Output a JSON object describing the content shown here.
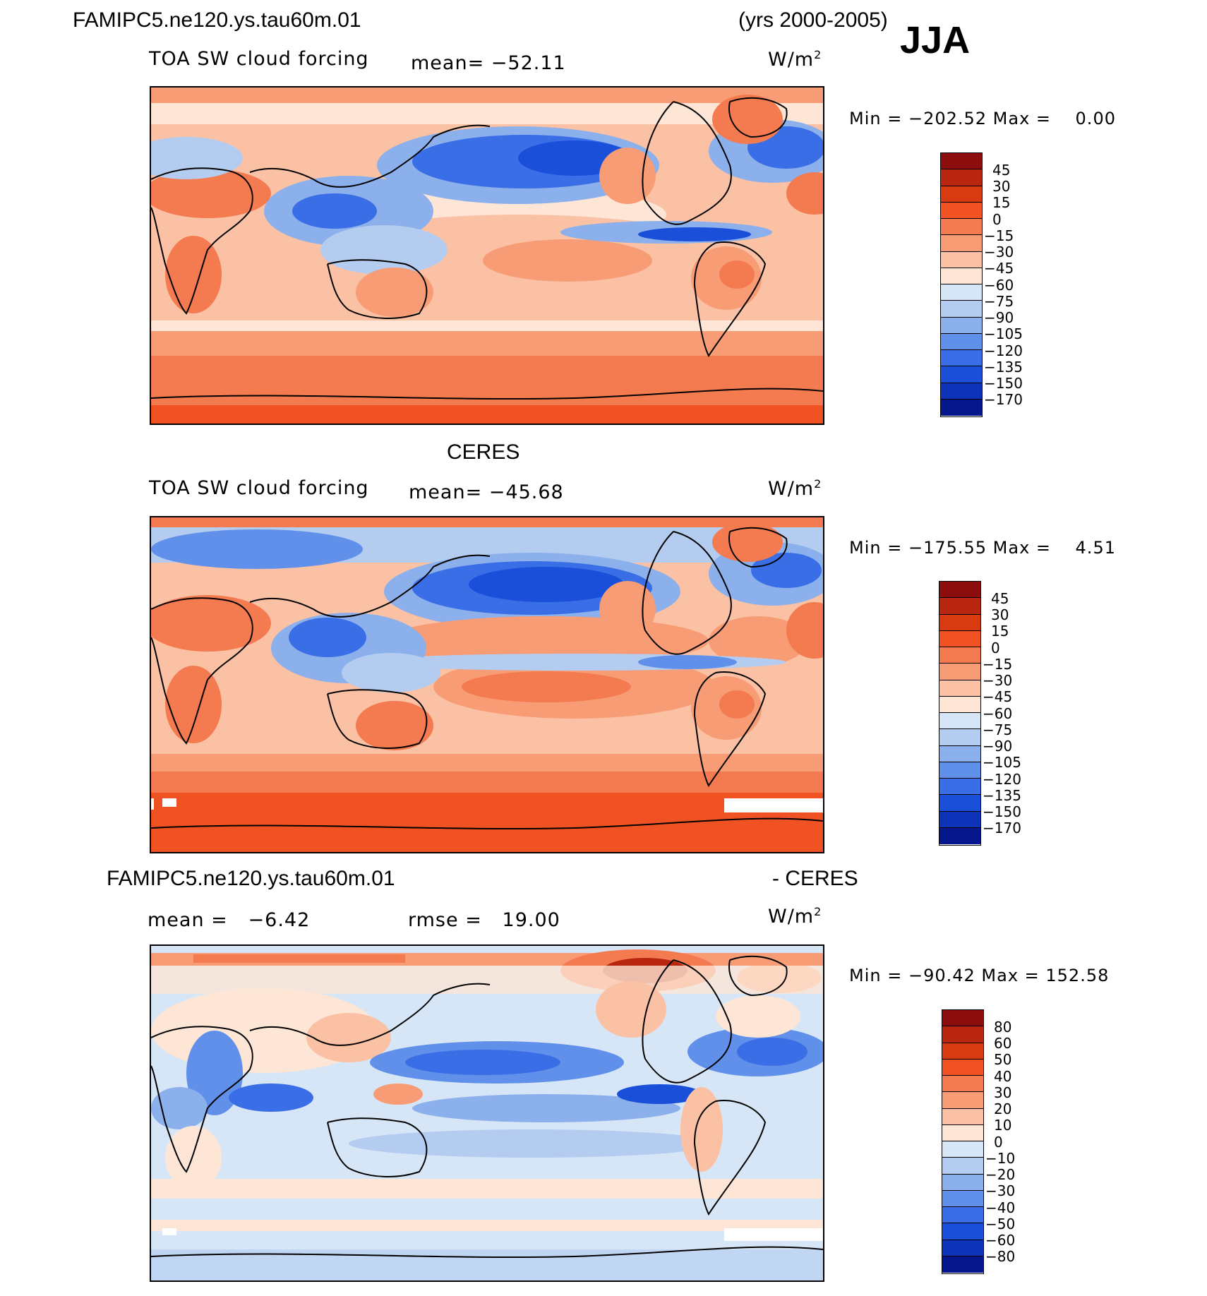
{
  "header": {
    "case_name": "FAMIPC5.ne120.ys.tau60m.01",
    "years": "(yrs 2000-2005)",
    "season": "JJA"
  },
  "panels": [
    {
      "id": "model",
      "title": "",
      "variable": "TOA SW cloud forcing",
      "mean_text": "mean= −52.11",
      "units": "W/m",
      "units_sup": "2",
      "minmax_text": "Min = −202.52 Max =    0.00",
      "colorbar_labels": [
        "45",
        "30",
        "15",
        "0",
        "−15",
        "−30",
        "−45",
        "−60",
        "−75",
        "−90",
        "−105",
        "−120",
        "−135",
        "−150",
        "−170"
      ],
      "colorbar_colors": [
        "#8c0d0d",
        "#b8260f",
        "#d83a12",
        "#f05223",
        "#f47a50",
        "#f89c76",
        "#fbc1a4",
        "#fde6d6",
        "#d6e6f7",
        "#b3ccef",
        "#8cb0ec",
        "#6190ea",
        "#3a6ee6",
        "#1a4fd9",
        "#0c33b8",
        "#06178e"
      ]
    },
    {
      "id": "obs",
      "title": "CERES",
      "variable": "TOA SW cloud forcing",
      "mean_text": "mean= −45.68",
      "units": "W/m",
      "units_sup": "2",
      "minmax_text": "Min = −175.55 Max =    4.51",
      "colorbar_labels": [
        "45",
        "30",
        "15",
        "0",
        "−15",
        "−30",
        "−45",
        "−60",
        "−75",
        "−90",
        "−105",
        "−120",
        "−135",
        "−150",
        "−170"
      ],
      "colorbar_colors": [
        "#8c0d0d",
        "#b8260f",
        "#d83a12",
        "#f05223",
        "#f47a50",
        "#f89c76",
        "#fbc1a4",
        "#fde6d6",
        "#d6e6f7",
        "#b3ccef",
        "#8cb0ec",
        "#6190ea",
        "#3a6ee6",
        "#1a4fd9",
        "#0c33b8",
        "#06178e"
      ]
    },
    {
      "id": "diff",
      "title_left": "FAMIPC5.ne120.ys.tau60m.01",
      "title_right": "- CERES",
      "mean_text": "mean =   −6.42",
      "rmse_text": "rmse =   19.00",
      "units": "W/m",
      "units_sup": "2",
      "minmax_text": "Min = −90.42 Max = 152.58",
      "colorbar_labels": [
        "80",
        "60",
        "50",
        "40",
        "30",
        "20",
        "10",
        "0",
        "−10",
        "−20",
        "−30",
        "−40",
        "−50",
        "−60",
        "−80"
      ],
      "colorbar_colors": [
        "#8c0d0d",
        "#b8260f",
        "#d83a12",
        "#f05223",
        "#f47a50",
        "#f89c76",
        "#fbc1a4",
        "#fde6d6",
        "#d6e6f7",
        "#b3ccef",
        "#8cb0ec",
        "#6190ea",
        "#3a6ee6",
        "#1a4fd9",
        "#0c33b8",
        "#06178e"
      ]
    }
  ],
  "map_colors": {
    "red_dark": "#f05223",
    "red_mid": "#f47a50",
    "red_light": "#f89c76",
    "peach": "#fbc1a4",
    "cream": "#fde6d6",
    "blue_pale": "#d6e6f7",
    "blue_light": "#b3ccef",
    "blue_mid": "#8cb0ec",
    "blue": "#6190ea",
    "blue_strong": "#3a6ee6",
    "blue_deep": "#1a4fd9",
    "brown_red": "#b8260f"
  }
}
